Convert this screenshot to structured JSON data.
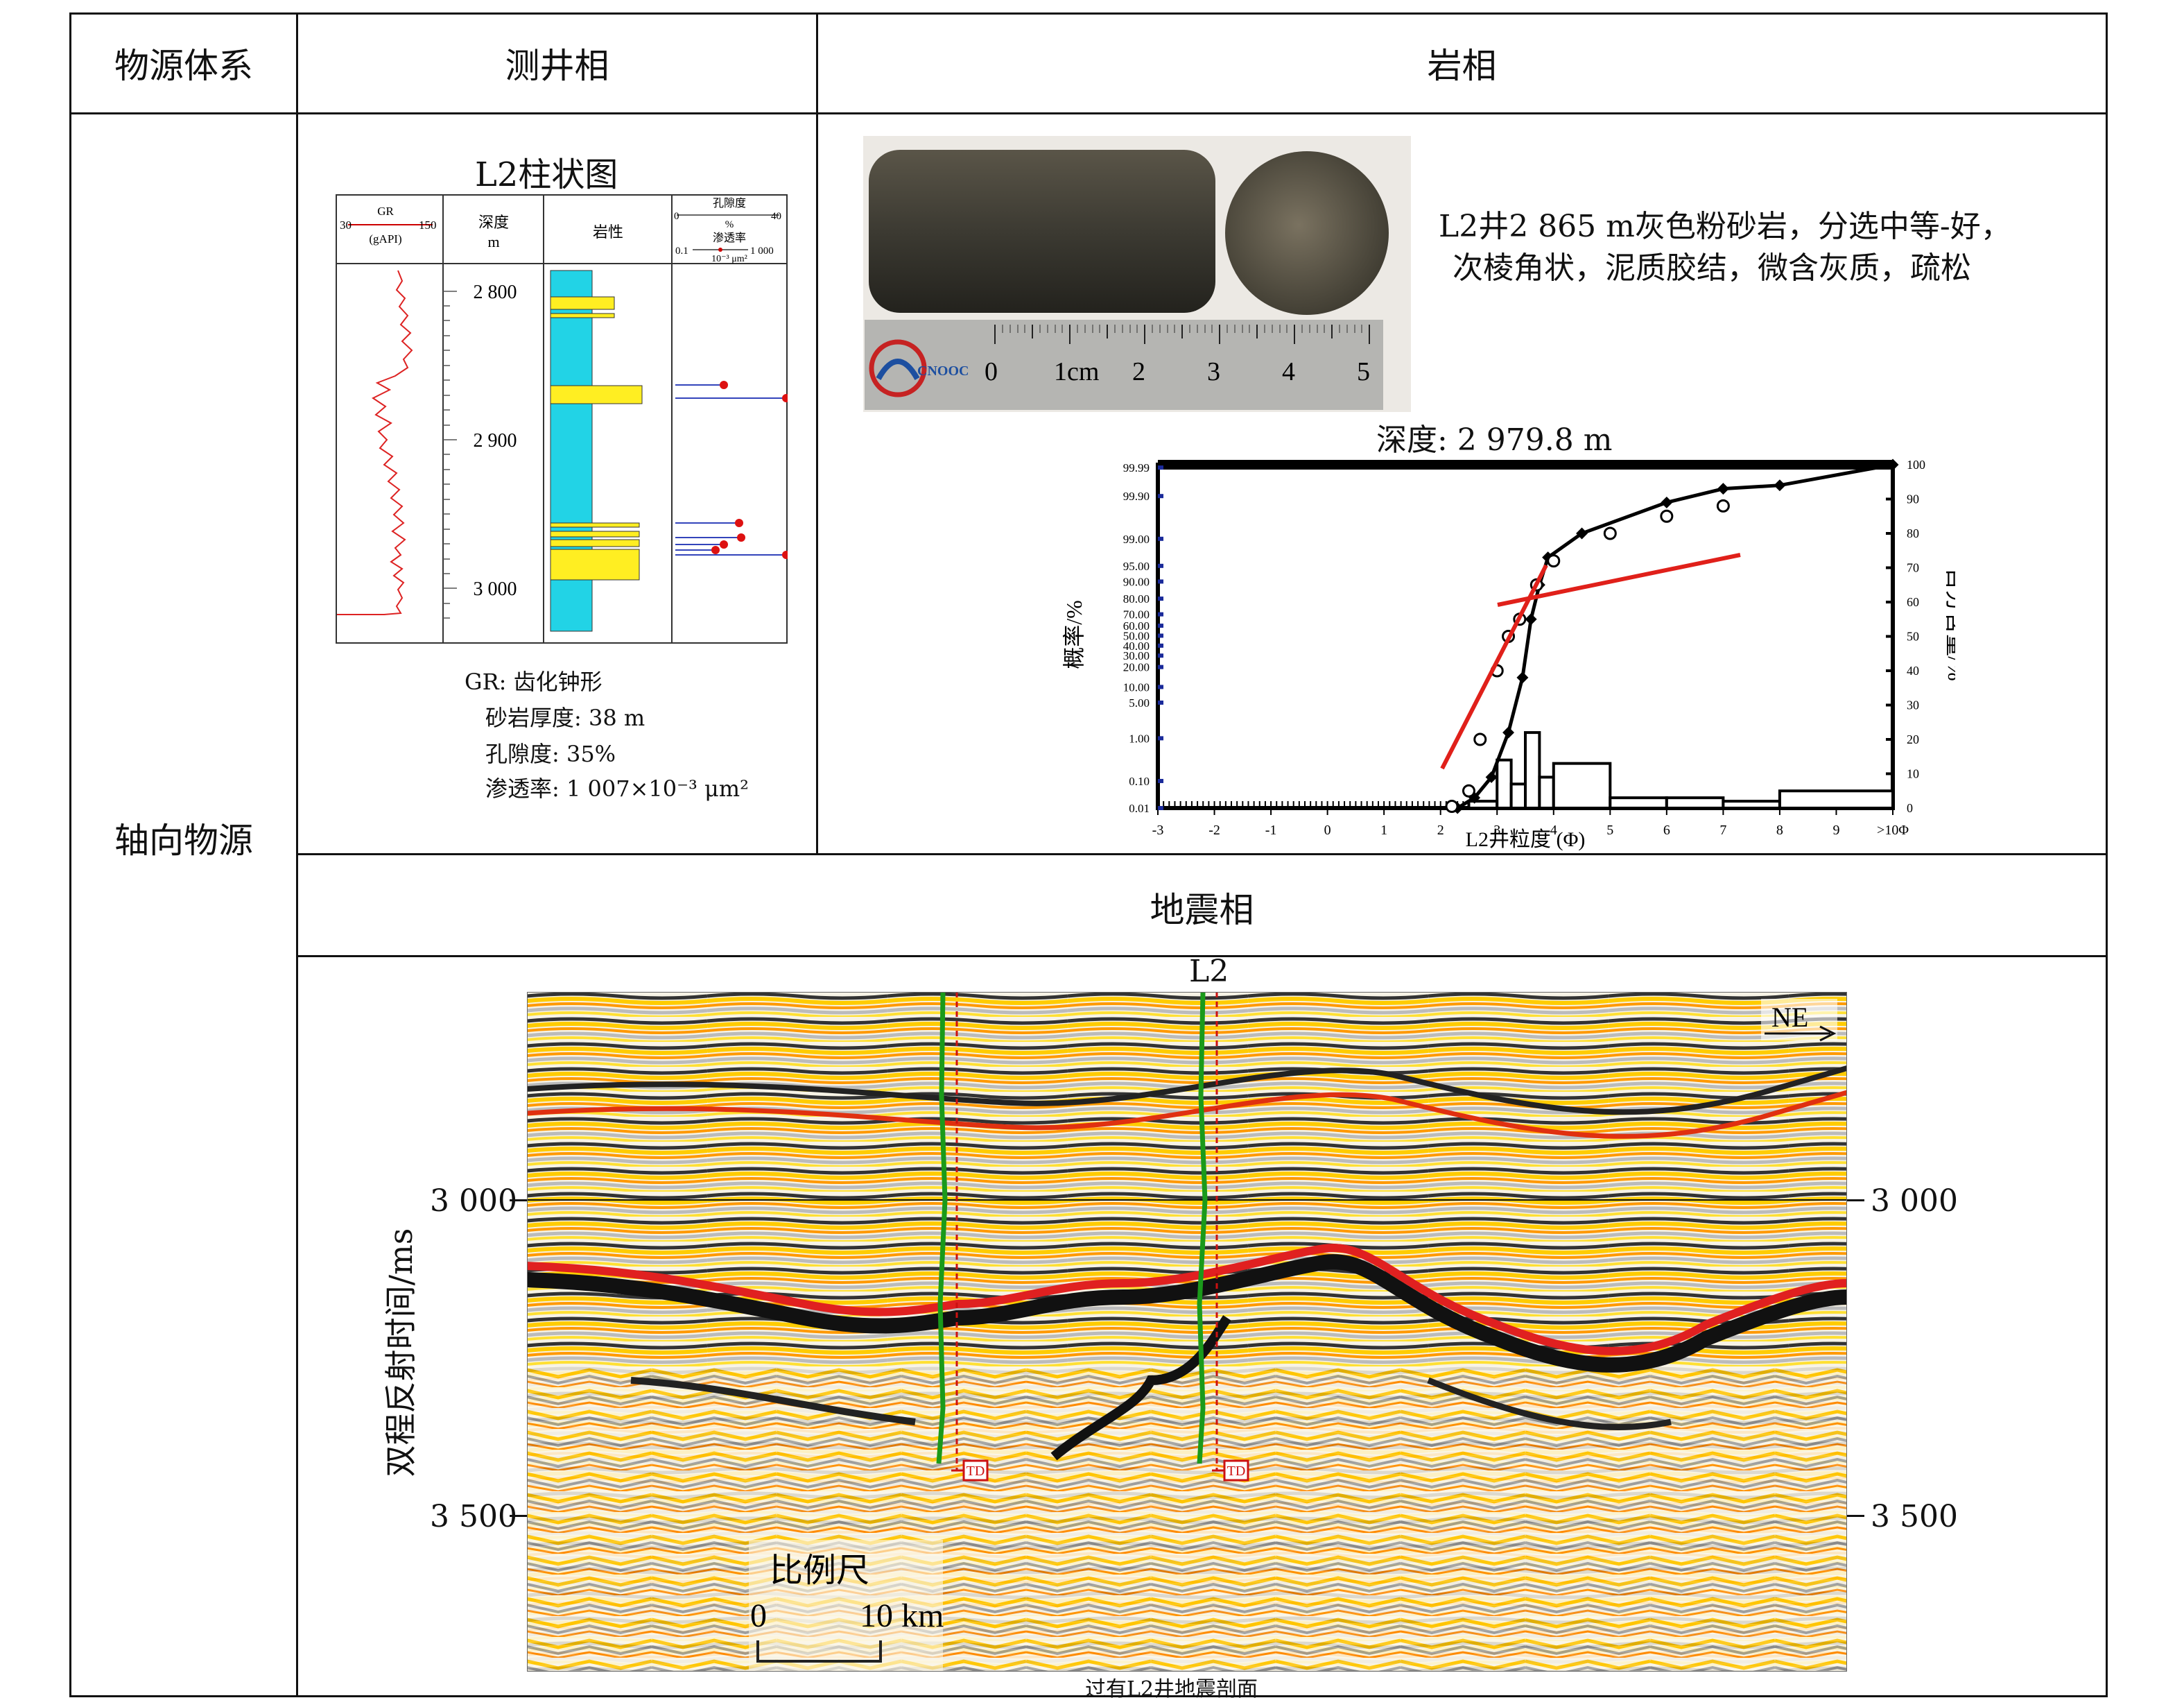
{
  "table": {
    "headers": {
      "source": "物源体系",
      "log": "测井相",
      "litho": "岩相"
    },
    "row_label": "轴向物源",
    "seismic_header": "地震相"
  },
  "log_panel": {
    "title": "L2柱状图",
    "gr_label": "GR",
    "gr_min": "30",
    "gr_max": "150",
    "gr_unit": "(gAPI)",
    "depth_label": "深度",
    "depth_unit": "m",
    "lith_label": "岩性",
    "por_label": "孔隙度",
    "por_min": "0",
    "por_unit": "%",
    "por_max": "40",
    "perm_label": "渗透率",
    "perm_min": "0.1",
    "perm_max": "1 000",
    "perm_unit": "10⁻³ μm²",
    "depths": [
      "2 800",
      "2 900",
      "3 000"
    ],
    "notes": [
      "GR: 齿化钟形",
      "砂岩厚度: 38 m",
      "孔隙度: 35%",
      "渗透率: 1 007×10⁻³ μm²"
    ]
  },
  "core_panel": {
    "description_line1": "L2井2 865 m灰色粉砂岩，分选中等-好，",
    "description_line2": "次棱角状，泥质胶结，微含灰质，疏松",
    "ruler_marks": [
      "0",
      "1cm",
      "2",
      "3",
      "4",
      "5"
    ],
    "logo_text": "CNOOC"
  },
  "grain_chart": {
    "title": "深度: 2 979.8 m",
    "xlabel": "L2井粒度 (Φ)",
    "ylabel_left": "概率/%",
    "ylabel_right": "百分含量/%",
    "x_ticks": [
      "-3",
      "-2",
      "-1",
      "0",
      "1",
      "2",
      "3",
      "4",
      "5",
      "6",
      "7",
      "8",
      "9",
      ">10Φ"
    ],
    "y_left_ticks": [
      "99.99",
      "99.90",
      "99.00",
      "95.00",
      "90.00",
      "80.00",
      "70.00",
      "60.00",
      "50.00",
      "40.00",
      "30.00",
      "20.00",
      "10.00",
      "5.00",
      "1.00",
      "0.10",
      "0.01"
    ],
    "y_right_ticks": [
      "100",
      "90",
      "80",
      "70",
      "60",
      "50",
      "40",
      "30",
      "20",
      "10",
      "0"
    ]
  },
  "chart_data": {
    "type": "line",
    "title": "深度: 2 979.8 m",
    "xlabel": "L2井粒度 (Φ)",
    "ylabel": "百分含量/%",
    "xlim": [
      -3,
      10
    ],
    "ylim": [
      0,
      100
    ],
    "series": [
      {
        "x": [
          2.3,
          2.6,
          2.9,
          3.2,
          3.45,
          3.6,
          3.75,
          3.9,
          4.5,
          6.0,
          7.0,
          8.0,
          10.0
        ],
        "values": [
          0,
          3,
          9,
          22,
          38,
          55,
          65,
          73,
          80,
          89,
          93,
          94,
          100
        ]
      }
    ],
    "histogram": {
      "bins": [
        [
          2.5,
          3.0
        ],
        [
          3.0,
          3.25
        ],
        [
          3.25,
          3.5
        ],
        [
          3.5,
          3.75
        ],
        [
          3.75,
          4.0
        ],
        [
          4.0,
          5.0
        ],
        [
          5.0,
          6.0
        ],
        [
          6.0,
          7.0
        ],
        [
          7.0,
          8.0
        ],
        [
          8.0,
          10.0
        ]
      ],
      "values": [
        2,
        14,
        7,
        22,
        9,
        13,
        3,
        3,
        2,
        5
      ]
    },
    "probability_points": {
      "x": [
        2.2,
        2.5,
        2.7,
        3.0,
        3.2,
        3.4,
        3.7,
        4.0,
        5.0,
        6.0,
        7.0
      ],
      "y_percent": [
        0.5,
        5,
        20,
        40,
        50,
        55,
        65,
        72,
        80,
        85,
        88
      ]
    }
  },
  "seismic": {
    "well_label": "L2",
    "direction": "NE",
    "ylabel": "双程反射时间/ms",
    "left_ticks": [
      "3 000",
      "3 500"
    ],
    "right_ticks": [
      "3 000",
      "3 500"
    ],
    "td_label": "TD",
    "scale_label": "比例尺",
    "scale_start": "0",
    "scale_end": "10 km",
    "caption": "过有L2井地震剖面"
  }
}
